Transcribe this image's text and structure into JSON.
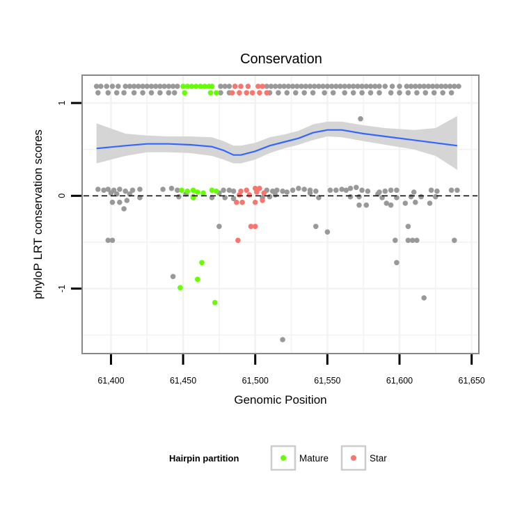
{
  "chart_data": {
    "type": "scatter",
    "title": "Conservation",
    "xlabel": "Genomic Position",
    "ylabel": "phyloP LRT conservation scores",
    "xlim": [
      61380,
      61655
    ],
    "ylim": [
      -1.7,
      1.3
    ],
    "x_ticks": [
      61400,
      61450,
      61500,
      61550,
      61600,
      61650
    ],
    "x_tick_labels": [
      "61,400",
      "61,450",
      "61,500",
      "61,550",
      "61,600",
      "61,650"
    ],
    "y_ticks": [
      1,
      0,
      -1
    ],
    "y_tick_labels": [
      "1",
      "0",
      "-1"
    ],
    "reference_line": {
      "y": 0,
      "style": "dashed"
    },
    "legend": {
      "title": "Hairpin partition",
      "position": "bottom",
      "entries": [
        {
          "label": "Mature",
          "color": "#66ff00"
        },
        {
          "label": "Star",
          "color": "#f8766d"
        }
      ]
    },
    "colors": {
      "other": "#999999",
      "mature": "#66ff00",
      "star": "#f8766d",
      "smooth_line": "#3366ff",
      "smooth_band": "#d3d3d3"
    },
    "series": [
      {
        "name": "Other",
        "points": [
          [
            61390,
            1.18
          ],
          [
            61393,
            1.18
          ],
          [
            61397,
            1.18
          ],
          [
            61401,
            1.18
          ],
          [
            61405,
            1.18
          ],
          [
            61410,
            1.18
          ],
          [
            61413,
            1.18
          ],
          [
            61416,
            1.18
          ],
          [
            61419,
            1.18
          ],
          [
            61422,
            1.18
          ],
          [
            61425,
            1.18
          ],
          [
            61428,
            1.18
          ],
          [
            61431,
            1.18
          ],
          [
            61434,
            1.18
          ],
          [
            61437,
            1.18
          ],
          [
            61440,
            1.18
          ],
          [
            61443,
            1.18
          ],
          [
            61446,
            1.18
          ],
          [
            61476,
            1.18
          ],
          [
            61479,
            1.18
          ],
          [
            61482,
            1.18
          ],
          [
            61486,
            1.18
          ],
          [
            61508,
            1.18
          ],
          [
            61511,
            1.18
          ],
          [
            61514,
            1.18
          ],
          [
            61517,
            1.18
          ],
          [
            61520,
            1.18
          ],
          [
            61523,
            1.18
          ],
          [
            61526,
            1.18
          ],
          [
            61529,
            1.18
          ],
          [
            61532,
            1.18
          ],
          [
            61535,
            1.18
          ],
          [
            61538,
            1.18
          ],
          [
            61541,
            1.18
          ],
          [
            61544,
            1.18
          ],
          [
            61547,
            1.18
          ],
          [
            61550,
            1.18
          ],
          [
            61553,
            1.18
          ],
          [
            61556,
            1.18
          ],
          [
            61559,
            1.18
          ],
          [
            61562,
            1.18
          ],
          [
            61565,
            1.18
          ],
          [
            61568,
            1.18
          ],
          [
            61571,
            1.18
          ],
          [
            61574,
            1.18
          ],
          [
            61577,
            1.18
          ],
          [
            61580,
            1.18
          ],
          [
            61583,
            1.18
          ],
          [
            61586,
            1.18
          ],
          [
            61590,
            1.18
          ],
          [
            61595,
            1.18
          ],
          [
            61600,
            1.18
          ],
          [
            61605,
            1.18
          ],
          [
            61608,
            1.18
          ],
          [
            61611,
            1.18
          ],
          [
            61614,
            1.18
          ],
          [
            61617,
            1.18
          ],
          [
            61620,
            1.18
          ],
          [
            61623,
            1.18
          ],
          [
            61626,
            1.18
          ],
          [
            61629,
            1.18
          ],
          [
            61632,
            1.18
          ],
          [
            61635,
            1.18
          ],
          [
            61638,
            1.18
          ],
          [
            61641,
            1.18
          ],
          [
            61391,
            1.11
          ],
          [
            61398,
            1.11
          ],
          [
            61404,
            1.11
          ],
          [
            61409,
            1.11
          ],
          [
            61416,
            1.11
          ],
          [
            61422,
            1.11
          ],
          [
            61428,
            1.11
          ],
          [
            61434,
            1.11
          ],
          [
            61440,
            1.11
          ],
          [
            61444,
            1.11
          ],
          [
            61476,
            1.11
          ],
          [
            61482,
            1.11
          ],
          [
            61510,
            1.11
          ],
          [
            61516,
            1.11
          ],
          [
            61522,
            1.11
          ],
          [
            61528,
            1.11
          ],
          [
            61534,
            1.11
          ],
          [
            61540,
            1.11
          ],
          [
            61548,
            1.11
          ],
          [
            61554,
            1.11
          ],
          [
            61562,
            1.11
          ],
          [
            61568,
            1.11
          ],
          [
            61574,
            1.11
          ],
          [
            61580,
            1.11
          ],
          [
            61586,
            1.11
          ],
          [
            61594,
            1.11
          ],
          [
            61600,
            1.11
          ],
          [
            61606,
            1.11
          ],
          [
            61612,
            1.11
          ],
          [
            61618,
            1.11
          ],
          [
            61624,
            1.11
          ],
          [
            61630,
            1.11
          ],
          [
            61636,
            1.11
          ],
          [
            61573,
            0.83
          ],
          [
            61391,
            0.07
          ],
          [
            61395,
            0.06
          ],
          [
            61398,
            0.07
          ],
          [
            61402,
            0.06
          ],
          [
            61406,
            0.07
          ],
          [
            61410,
            0.05
          ],
          [
            61415,
            0.06
          ],
          [
            61420,
            0.07
          ],
          [
            61436,
            0.07
          ],
          [
            61442,
            0.08
          ],
          [
            61446,
            0.06
          ],
          [
            61478,
            0.06
          ],
          [
            61482,
            0.06
          ],
          [
            61485,
            0.05
          ],
          [
            61508,
            0.06
          ],
          [
            61512,
            0.05
          ],
          [
            61515,
            0.06
          ],
          [
            61519,
            0.05
          ],
          [
            61522,
            0.04
          ],
          [
            61526,
            0.06
          ],
          [
            61530,
            0.08
          ],
          [
            61534,
            0.07
          ],
          [
            61538,
            0.06
          ],
          [
            61542,
            0.05
          ],
          [
            61552,
            0.06
          ],
          [
            61556,
            0.06
          ],
          [
            61560,
            0.07
          ],
          [
            61563,
            0.06
          ],
          [
            61566,
            0.08
          ],
          [
            61570,
            0.09
          ],
          [
            61574,
            0.06
          ],
          [
            61578,
            0.05
          ],
          [
            61586,
            0.04
          ],
          [
            61590,
            0.05
          ],
          [
            61594,
            0.06
          ],
          [
            61598,
            0.06
          ],
          [
            61610,
            0.04
          ],
          [
            61622,
            0.06
          ],
          [
            61626,
            0.05
          ],
          [
            61636,
            0.06
          ],
          [
            61640,
            0.06
          ],
          [
            61400,
            0.03
          ],
          [
            61404,
            0.02
          ],
          [
            61413,
            0.02
          ],
          [
            61452,
            0.02
          ],
          [
            61475,
            0.03
          ],
          [
            61514,
            0.01
          ],
          [
            61538,
            0.03
          ],
          [
            61585,
            0.02
          ],
          [
            61420,
            -0.02
          ],
          [
            61411,
            -0.05
          ],
          [
            61447,
            -0.01
          ],
          [
            61457,
            -0.01
          ],
          [
            61470,
            -0.02
          ],
          [
            61479,
            -0.02
          ],
          [
            61485,
            -0.03
          ],
          [
            61505,
            -0.02
          ],
          [
            61510,
            -0.01
          ],
          [
            61544,
            -0.02
          ],
          [
            61566,
            -0.01
          ],
          [
            61572,
            -0.01
          ],
          [
            61588,
            -0.02
          ],
          [
            61598,
            -0.02
          ],
          [
            61608,
            -0.01
          ],
          [
            61615,
            -0.01
          ],
          [
            61625,
            -0.01
          ],
          [
            61401,
            -0.07
          ],
          [
            61406,
            -0.07
          ],
          [
            61572,
            -0.1
          ],
          [
            61577,
            -0.1
          ],
          [
            61591,
            -0.08
          ],
          [
            61594,
            -0.1
          ],
          [
            61604,
            -0.08
          ],
          [
            61611,
            -0.07
          ],
          [
            61621,
            -0.08
          ],
          [
            61409,
            -0.14
          ],
          [
            61475,
            -0.33
          ],
          [
            61542,
            -0.33
          ],
          [
            61550,
            -0.39
          ],
          [
            61606,
            -0.33
          ],
          [
            61398,
            -0.48
          ],
          [
            61401,
            -0.48
          ],
          [
            61597,
            -0.48
          ],
          [
            61606,
            -0.48
          ],
          [
            61609,
            -0.48
          ],
          [
            61612,
            -0.48
          ],
          [
            61638,
            -0.48
          ],
          [
            61598,
            -0.72
          ],
          [
            61443,
            -0.87
          ],
          [
            61617,
            -1.1
          ],
          [
            61519,
            -1.55
          ]
        ]
      },
      {
        "name": "Mature",
        "points": [
          [
            61450,
            1.18
          ],
          [
            61453,
            1.18
          ],
          [
            61456,
            1.18
          ],
          [
            61459,
            1.18
          ],
          [
            61462,
            1.18
          ],
          [
            61465,
            1.18
          ],
          [
            61468,
            1.18
          ],
          [
            61470,
            1.18
          ],
          [
            61451,
            1.11
          ],
          [
            61469,
            1.11
          ],
          [
            61473,
            1.11
          ],
          [
            61449,
            0.06
          ],
          [
            61453,
            0.05
          ],
          [
            61457,
            0.06
          ],
          [
            61460,
            0.04
          ],
          [
            61464,
            0.03
          ],
          [
            61470,
            0.06
          ],
          [
            61473,
            0.05
          ],
          [
            61457,
            -0.02
          ],
          [
            61463,
            -0.72
          ],
          [
            61460,
            -0.9
          ],
          [
            61448,
            -0.99
          ],
          [
            61472,
            -1.15
          ]
        ]
      },
      {
        "name": "Star",
        "points": [
          [
            61486,
            1.18
          ],
          [
            61490,
            1.18
          ],
          [
            61495,
            1.18
          ],
          [
            61502,
            1.18
          ],
          [
            61505,
            1.18
          ],
          [
            61484,
            1.11
          ],
          [
            61489,
            1.11
          ],
          [
            61494,
            1.11
          ],
          [
            61498,
            1.11
          ],
          [
            61503,
            1.11
          ],
          [
            61508,
            1.11
          ],
          [
            61490,
            0.05
          ],
          [
            61494,
            0.06
          ],
          [
            61500,
            0.08
          ],
          [
            61503,
            0.08
          ],
          [
            61501,
            0.04
          ],
          [
            61506,
            0.03
          ],
          [
            61489,
            0.01
          ],
          [
            61496,
            0.01
          ],
          [
            61487,
            -0.07
          ],
          [
            61491,
            -0.07
          ],
          [
            61500,
            -0.07
          ],
          [
            61505,
            -0.05
          ],
          [
            61497,
            -0.33
          ],
          [
            61500,
            -0.33
          ],
          [
            61488,
            -0.48
          ]
        ]
      }
    ],
    "smooth": {
      "method": "loess",
      "x": [
        61390,
        61410,
        61425,
        61440,
        61455,
        61470,
        61478,
        61485,
        61490,
        61500,
        61510,
        61520,
        61530,
        61540,
        61550,
        61560,
        61575,
        61590,
        61610,
        61625,
        61640
      ],
      "y": [
        0.51,
        0.54,
        0.56,
        0.56,
        0.55,
        0.53,
        0.49,
        0.44,
        0.44,
        0.48,
        0.54,
        0.58,
        0.62,
        0.68,
        0.71,
        0.71,
        0.67,
        0.64,
        0.6,
        0.57,
        0.54
      ],
      "lower": [
        0.35,
        0.43,
        0.47,
        0.47,
        0.46,
        0.43,
        0.39,
        0.35,
        0.35,
        0.39,
        0.46,
        0.51,
        0.55,
        0.6,
        0.64,
        0.63,
        0.59,
        0.55,
        0.5,
        0.43,
        0.28
      ],
      "upper": [
        0.78,
        0.67,
        0.65,
        0.64,
        0.64,
        0.63,
        0.59,
        0.54,
        0.54,
        0.57,
        0.63,
        0.66,
        0.7,
        0.77,
        0.8,
        0.8,
        0.76,
        0.73,
        0.71,
        0.73,
        0.86
      ]
    }
  }
}
